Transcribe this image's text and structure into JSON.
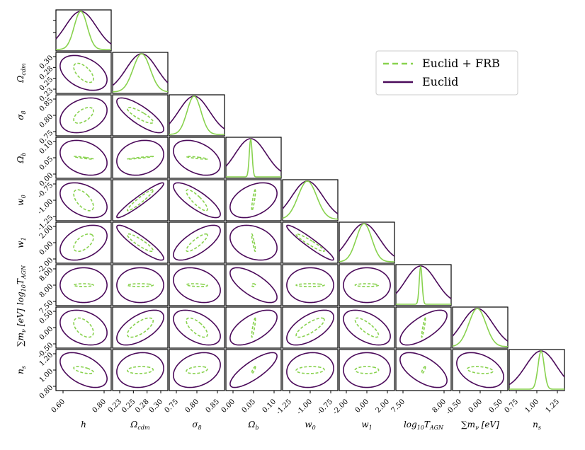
{
  "chart_data": {
    "type": "corner",
    "parameters": [
      {
        "label": "h",
        "sub": "",
        "ticks": [
          "0.60",
          "0.80"
        ]
      },
      {
        "label": "Ω",
        "sub": "cdm",
        "ticks": [
          "0.23",
          "0.25",
          "0.28",
          "0.30"
        ]
      },
      {
        "label": "σ",
        "sub": "8",
        "ticks": [
          "0.75",
          "0.80",
          "0.85"
        ]
      },
      {
        "label": "Ω",
        "sub": "b",
        "ticks": [
          "0.00",
          "0.05",
          "0.10"
        ]
      },
      {
        "label": "w",
        "sub": "0",
        "ticks": [
          "-1.25",
          "-1.00",
          "-0.75"
        ]
      },
      {
        "label": "w",
        "sub": "1",
        "ticks": [
          "-2.00",
          "0.00",
          "2.00"
        ]
      },
      {
        "label": "log",
        "sub": "10",
        "tail": "T",
        "tailsub": "AGN",
        "ticks": [
          "7.50",
          "8.00"
        ]
      },
      {
        "label": "∑m",
        "sub": "ν",
        "tail": " [eV]",
        "ticks": [
          "-0.50",
          "0.00",
          "0.50"
        ]
      },
      {
        "label": "n",
        "sub": "s",
        "ticks": [
          "0.75",
          "1.00",
          "1.25"
        ]
      }
    ],
    "ylabel_ticks": {
      "1": [
        "0.23",
        "0.25",
        "0.28",
        "0.30"
      ],
      "2": [
        "0.75",
        "0.80",
        "0.85"
      ],
      "3": [
        "0.00",
        "0.05",
        "0.10"
      ],
      "4": [
        "-1.25",
        "-1.00",
        "-0.75"
      ],
      "5": [
        "-2.00",
        "0.00",
        "2.00"
      ],
      "6": [
        "7.50",
        "8.00",
        "8.00"
      ],
      "7": [
        "-0.50",
        "0.00",
        "0.50"
      ],
      "8": [
        "0.80",
        "1.00",
        "1.20"
      ]
    },
    "series": [
      {
        "name": "Euclid + FRB",
        "color": "#88d24e",
        "style": "dashed"
      },
      {
        "name": "Euclid",
        "color": "#4b0a5a",
        "style": "solid"
      }
    ],
    "diag_width_ratio": [
      0.42,
      0.55,
      0.45,
      0.07,
      0.6,
      0.5,
      0.05,
      0.55,
      0.2
    ],
    "correlations": {
      "1-0": [
        -0.4,
        -0.6
      ],
      "2-0": [
        0.3,
        0.55
      ],
      "2-1": [
        -0.8,
        -0.85
      ],
      "3-0": [
        -0.3,
        -0.9
      ],
      "3-1": [
        0.2,
        0.95
      ],
      "3-2": [
        -0.4,
        -0.85
      ],
      "4-0": [
        -0.4,
        -0.6
      ],
      "4-1": [
        0.95,
        0.95
      ],
      "4-2": [
        -0.8,
        -0.85
      ],
      "4-3": [
        0.4,
        0.85
      ],
      "5-0": [
        0.4,
        0.55
      ],
      "5-1": [
        -0.9,
        -0.9
      ],
      "5-2": [
        0.7,
        0.85
      ],
      "5-3": [
        -0.3,
        -0.9
      ],
      "5-4": [
        -0.95,
        -0.95
      ],
      "6-0": [
        0.0,
        0.0
      ],
      "6-1": [
        0.0,
        0.0
      ],
      "6-2": [
        -0.3,
        -0.3
      ],
      "6-3": [
        -0.7,
        0.0
      ],
      "6-4": [
        0.0,
        0.0
      ],
      "6-5": [
        0.0,
        0.0
      ],
      "7-0": [
        -0.3,
        -0.5
      ],
      "7-1": [
        0.6,
        0.7
      ],
      "7-2": [
        -0.5,
        -0.7
      ],
      "7-3": [
        0.6,
        0.85
      ],
      "7-4": [
        0.6,
        0.8
      ],
      "7-5": [
        -0.5,
        -0.8
      ],
      "7-6": [
        0.7,
        0.9
      ],
      "8-0": [
        -0.5,
        -0.6
      ],
      "8-1": [
        0.1,
        0.1
      ],
      "8-2": [
        0.3,
        0.3
      ],
      "8-3": [
        0.8,
        0.85
      ],
      "8-4": [
        0.1,
        0.1
      ],
      "8-5": [
        0.0,
        0.0
      ],
      "8-6": [
        -0.6,
        0.8
      ],
      "8-7": [
        -0.4,
        -0.3
      ]
    }
  }
}
